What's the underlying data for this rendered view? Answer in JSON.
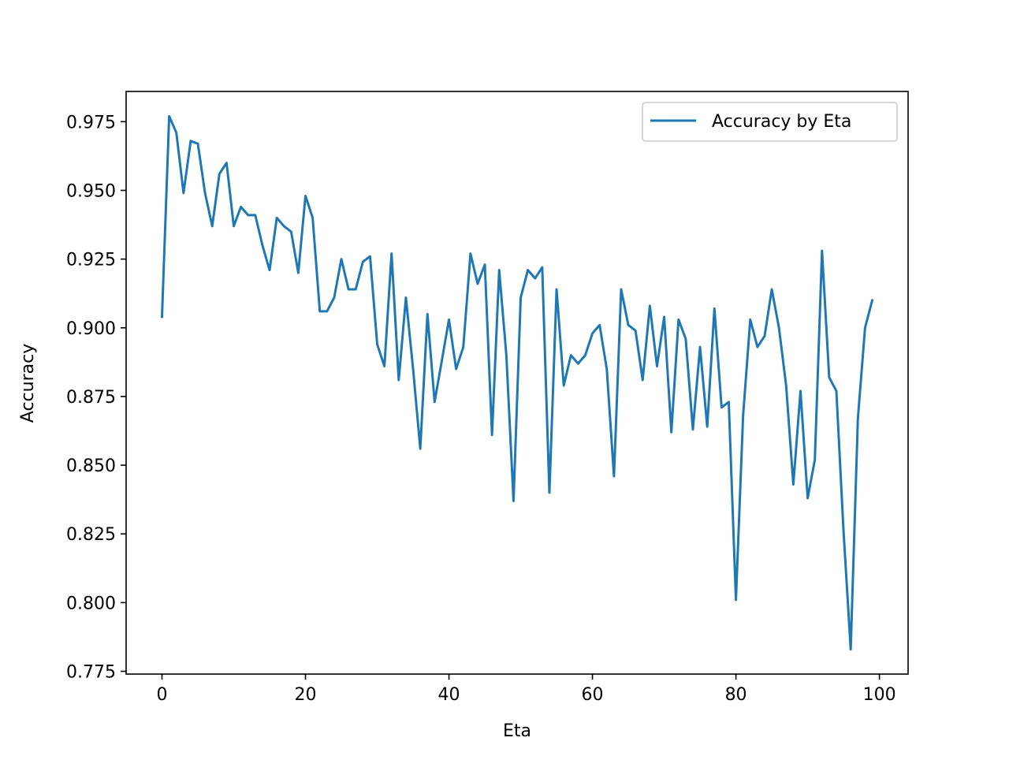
{
  "chart_data": {
    "type": "line",
    "title": "",
    "xlabel": "Eta",
    "ylabel": "Accuracy",
    "xlim": [
      -5,
      104
    ],
    "ylim": [
      0.774,
      0.986
    ],
    "xticks": [
      0,
      20,
      40,
      60,
      80,
      100
    ],
    "xtick_labels": [
      "0",
      "20",
      "40",
      "60",
      "80",
      "100"
    ],
    "yticks": [
      0.775,
      0.8,
      0.825,
      0.85,
      0.875,
      0.9,
      0.925,
      0.95,
      0.975
    ],
    "ytick_labels": [
      "0.775",
      "0.800",
      "0.825",
      "0.850",
      "0.875",
      "0.900",
      "0.925",
      "0.950",
      "0.975"
    ],
    "grid": false,
    "legend_position": "top-right",
    "series": [
      {
        "name": "Accuracy by Eta",
        "color": "#1f77b4",
        "x": [
          0,
          1,
          2,
          3,
          4,
          5,
          6,
          7,
          8,
          9,
          10,
          11,
          12,
          13,
          14,
          15,
          16,
          17,
          18,
          19,
          20,
          21,
          22,
          23,
          24,
          25,
          26,
          27,
          28,
          29,
          30,
          31,
          32,
          33,
          34,
          35,
          36,
          37,
          38,
          39,
          40,
          41,
          42,
          43,
          44,
          45,
          46,
          47,
          48,
          49,
          50,
          51,
          52,
          53,
          54,
          55,
          56,
          57,
          58,
          59,
          60,
          61,
          62,
          63,
          64,
          65,
          66,
          67,
          68,
          69,
          70,
          71,
          72,
          73,
          74,
          75,
          76,
          77,
          78,
          79,
          80,
          81,
          82,
          83,
          84,
          85,
          86,
          87,
          88,
          89,
          90,
          91,
          92,
          93,
          94,
          95,
          96,
          97,
          98,
          99
        ],
        "y": [
          0.904,
          0.977,
          0.971,
          0.949,
          0.968,
          0.967,
          0.949,
          0.937,
          0.956,
          0.96,
          0.937,
          0.944,
          0.941,
          0.941,
          0.93,
          0.921,
          0.94,
          0.937,
          0.935,
          0.92,
          0.948,
          0.94,
          0.906,
          0.906,
          0.911,
          0.925,
          0.914,
          0.914,
          0.924,
          0.926,
          0.894,
          0.886,
          0.927,
          0.881,
          0.911,
          0.885,
          0.856,
          0.905,
          0.873,
          0.888,
          0.903,
          0.885,
          0.893,
          0.927,
          0.916,
          0.923,
          0.861,
          0.921,
          0.89,
          0.837,
          0.911,
          0.921,
          0.918,
          0.922,
          0.84,
          0.914,
          0.879,
          0.89,
          0.887,
          0.89,
          0.898,
          0.901,
          0.885,
          0.846,
          0.914,
          0.901,
          0.899,
          0.881,
          0.908,
          0.886,
          0.904,
          0.862,
          0.903,
          0.896,
          0.863,
          0.893,
          0.864,
          0.907,
          0.871,
          0.873,
          0.801,
          0.868,
          0.903,
          0.893,
          0.897,
          0.914,
          0.9,
          0.879,
          0.843,
          0.877,
          0.838,
          0.852,
          0.928,
          0.882,
          0.877,
          0.826,
          0.783,
          0.867,
          0.9,
          0.91
        ]
      }
    ]
  }
}
